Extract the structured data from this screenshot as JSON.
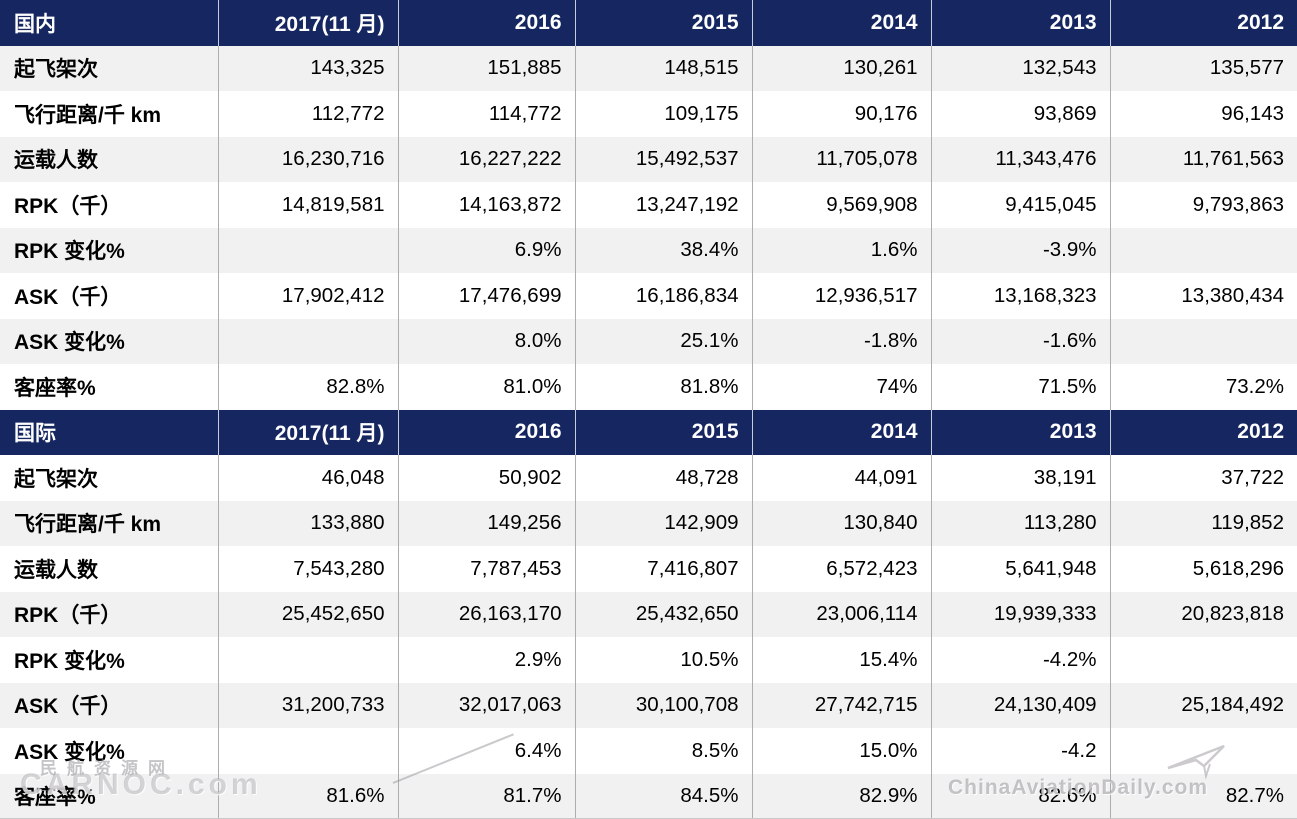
{
  "chart_data": {
    "type": "table",
    "columns": [
      "2017(11 月)",
      "2016",
      "2015",
      "2014",
      "2013",
      "2012"
    ],
    "sections": [
      {
        "title": "国内",
        "rows": [
          {
            "label": "起飞架次",
            "values": [
              "143,325",
              "151,885",
              "148,515",
              "130,261",
              "132,543",
              "135,577"
            ]
          },
          {
            "label": "飞行距离/千 km",
            "values": [
              "112,772",
              "114,772",
              "109,175",
              "90,176",
              "93,869",
              "96,143"
            ]
          },
          {
            "label": "运载人数",
            "values": [
              "16,230,716",
              "16,227,222",
              "15,492,537",
              "11,705,078",
              "11,343,476",
              "11,761,563"
            ]
          },
          {
            "label": "RPK（千）",
            "values": [
              "14,819,581",
              "14,163,872",
              "13,247,192",
              "9,569,908",
              "9,415,045",
              "9,793,863"
            ]
          },
          {
            "label": "RPK 变化%",
            "values": [
              "",
              "6.9%",
              "38.4%",
              "1.6%",
              "-3.9%",
              ""
            ]
          },
          {
            "label": "ASK（千）",
            "values": [
              "17,902,412",
              "17,476,699",
              "16,186,834",
              "12,936,517",
              "13,168,323",
              "13,380,434"
            ]
          },
          {
            "label": "ASK 变化%",
            "values": [
              "",
              "8.0%",
              "25.1%",
              "-1.8%",
              "-1.6%",
              ""
            ]
          },
          {
            "label": "客座率%",
            "values": [
              "82.8%",
              "81.0%",
              "81.8%",
              "74%",
              "71.5%",
              "73.2%"
            ]
          }
        ]
      },
      {
        "title": "国际",
        "rows": [
          {
            "label": "起飞架次",
            "values": [
              "46,048",
              "50,902",
              "48,728",
              "44,091",
              "38,191",
              "37,722"
            ]
          },
          {
            "label": "飞行距离/千 km",
            "values": [
              "133,880",
              "149,256",
              "142,909",
              "130,840",
              "113,280",
              "119,852"
            ]
          },
          {
            "label": "运载人数",
            "values": [
              "7,543,280",
              "7,787,453",
              "7,416,807",
              "6,572,423",
              "5,641,948",
              "5,618,296"
            ]
          },
          {
            "label": "RPK（千）",
            "values": [
              "25,452,650",
              "26,163,170",
              "25,432,650",
              "23,006,114",
              "19,939,333",
              "20,823,818"
            ]
          },
          {
            "label": "RPK 变化%",
            "values": [
              "",
              "2.9%",
              "10.5%",
              "15.4%",
              "-4.2%",
              ""
            ]
          },
          {
            "label": "ASK（千）",
            "values": [
              "31,200,733",
              "32,017,063",
              "30,100,708",
              "27,742,715",
              "24,130,409",
              "25,184,492"
            ]
          },
          {
            "label": "ASK 变化%",
            "values": [
              "",
              "6.4%",
              "8.5%",
              "15.0%",
              "-4.2",
              ""
            ]
          },
          {
            "label": "客座率%",
            "values": [
              "81.6%",
              "81.7%",
              "84.5%",
              "82.9%",
              "82.6%",
              "82.7%"
            ]
          }
        ]
      }
    ]
  },
  "watermarks": {
    "left_line1": "民航资源网",
    "left_line2": "CARNOC.com",
    "right": "ChinaAviationDaily.com"
  },
  "colors": {
    "header_bg": "#152661",
    "header_text": "#FFFFFF",
    "row_bg": "#FFFFFF",
    "row_alt_bg": "#F2F1F2",
    "body_text": "#000000"
  }
}
